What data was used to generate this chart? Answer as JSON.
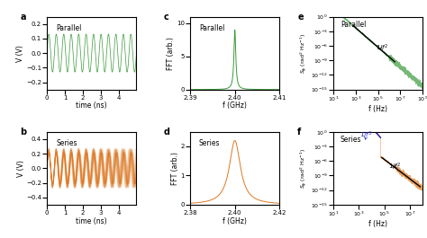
{
  "panel_labels": [
    "a",
    "b",
    "c",
    "d",
    "e",
    "f"
  ],
  "green_color": "#3a9a3a",
  "orange_color": "#e07820",
  "black_color": "#000000",
  "blue_color": "#2222cc",
  "parallel_label": "Parallel",
  "series_label": "Series",
  "time_xlabel": "time (ns)",
  "time_ylabel": "V (V)",
  "fft_xlabel": "f (GHz)",
  "fft_ylabel": "FFT (arb.)",
  "pn_xlabel": "f (Hz)",
  "time_xlim": [
    0,
    5.0
  ],
  "time_a_ylim": [
    -0.25,
    0.25
  ],
  "time_b_ylim": [
    -0.5,
    0.5
  ],
  "fft_c_xlim": [
    2.39,
    2.41
  ],
  "fft_c_ylim": [
    0,
    11
  ],
  "fft_d_xlim": [
    2.38,
    2.42
  ],
  "fft_d_ylim": [
    0,
    2.5
  ],
  "pn_e_xlim": [
    10,
    1000000000.0
  ],
  "pn_f_xlim": [
    10,
    100000000.0
  ],
  "pn_ylim": [
    1e-15,
    1.0
  ],
  "carrier_freq_ns": 2.4,
  "time_a_amp": 0.13,
  "time_b_amp": 0.28
}
